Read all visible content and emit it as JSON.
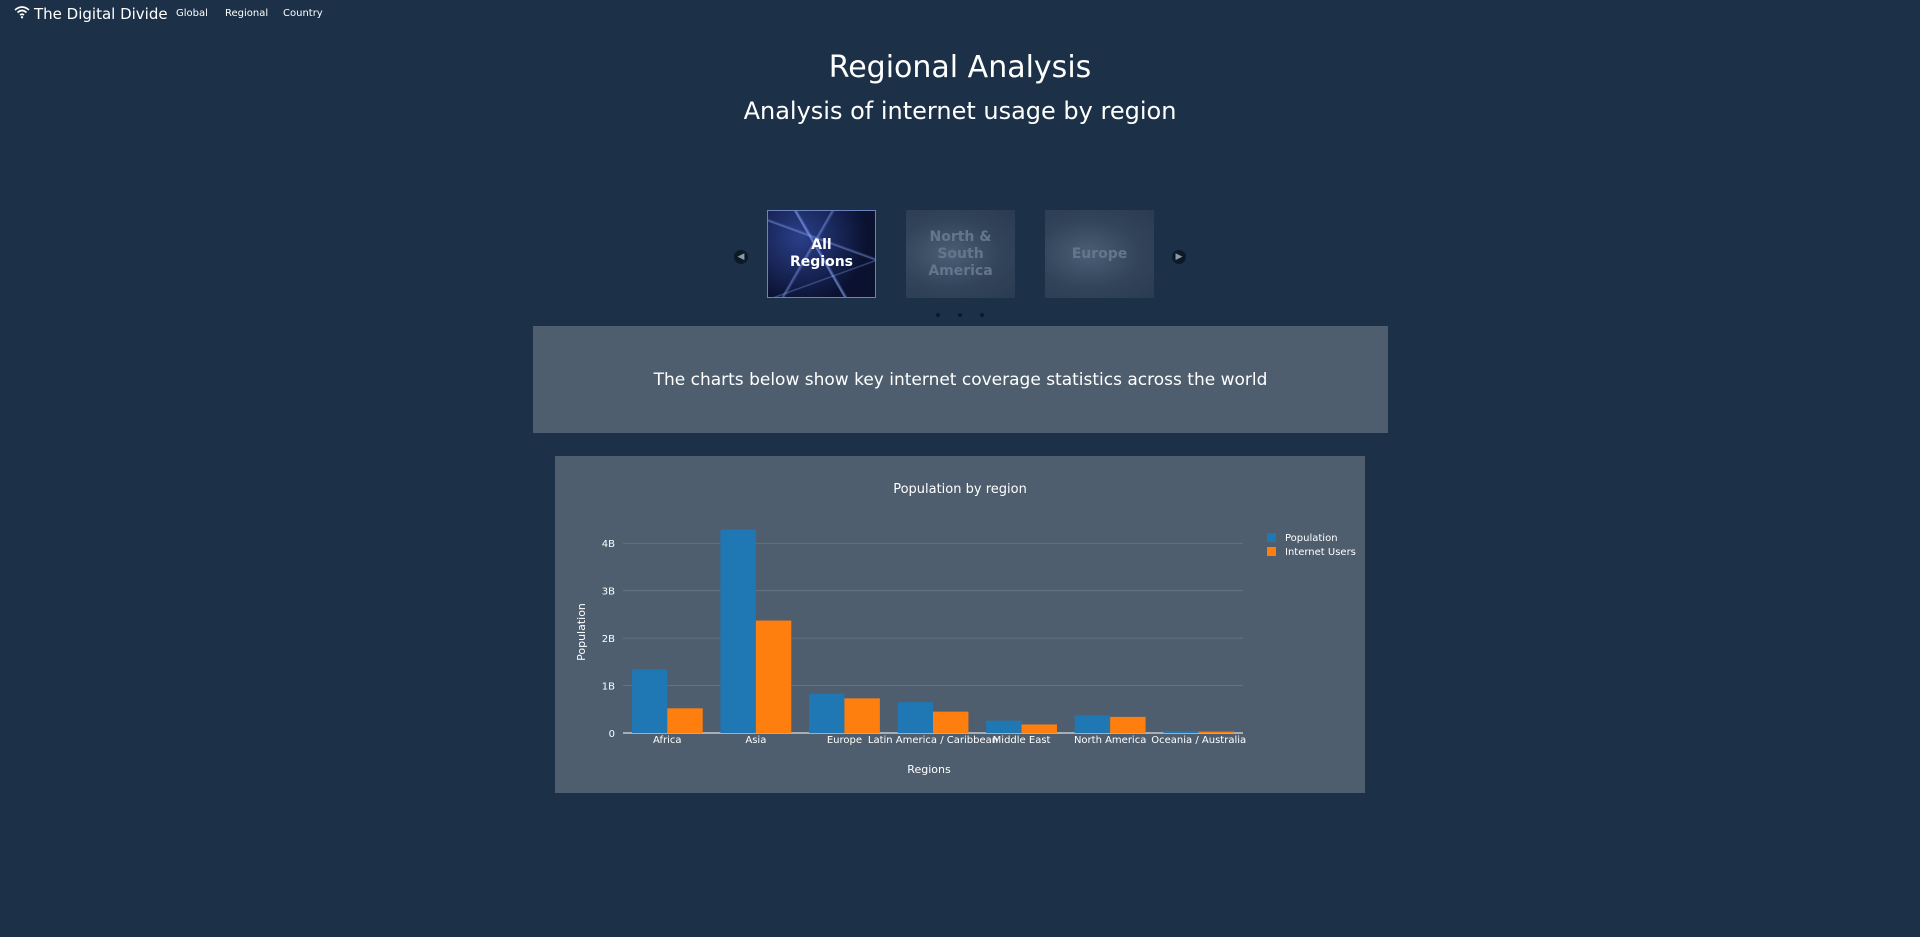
{
  "navbar": {
    "brand": "The Digital Divide",
    "brand_icon": "wifi-icon",
    "links": [
      "Global",
      "Regional",
      "Country"
    ]
  },
  "header": {
    "title": "Regional Analysis",
    "subtitle": "Analysis of internet usage by region"
  },
  "carousel": {
    "prev_icon": "chevron-left-icon",
    "next_icon": "chevron-right-icon",
    "slides": [
      {
        "label": "All Regions",
        "active": true
      },
      {
        "label": "North & South America",
        "active": false
      },
      {
        "label": "Europe",
        "active": false
      }
    ],
    "indicator_count": 3
  },
  "info": {
    "text": "The charts below show key internet coverage statistics across the world"
  },
  "chart_data": {
    "type": "bar",
    "title": "Population by region",
    "xlabel": "Regions",
    "ylabel": "Population",
    "categories": [
      "Africa",
      "Asia",
      "Europe",
      "Latin America / Caribbean",
      "Middle East",
      "North America",
      "Oceania / Australia"
    ],
    "series": [
      {
        "name": "Population",
        "color": "#1f77b4",
        "values": [
          1340000000,
          4290000000,
          830000000,
          650000000,
          260000000,
          370000000,
          42000000
        ]
      },
      {
        "name": "Internet Users",
        "color": "#ff7f0e",
        "values": [
          520000000,
          2370000000,
          730000000,
          450000000,
          180000000,
          340000000,
          29000000
        ]
      }
    ],
    "ylim": [
      0,
      4300000000
    ],
    "yticks": [
      {
        "value": 0,
        "label": "0"
      },
      {
        "value": 1000000000,
        "label": "1B"
      },
      {
        "value": 2000000000,
        "label": "2B"
      },
      {
        "value": 3000000000,
        "label": "3B"
      },
      {
        "value": 4000000000,
        "label": "4B"
      }
    ],
    "grid": true,
    "legend_position": "top-right"
  }
}
